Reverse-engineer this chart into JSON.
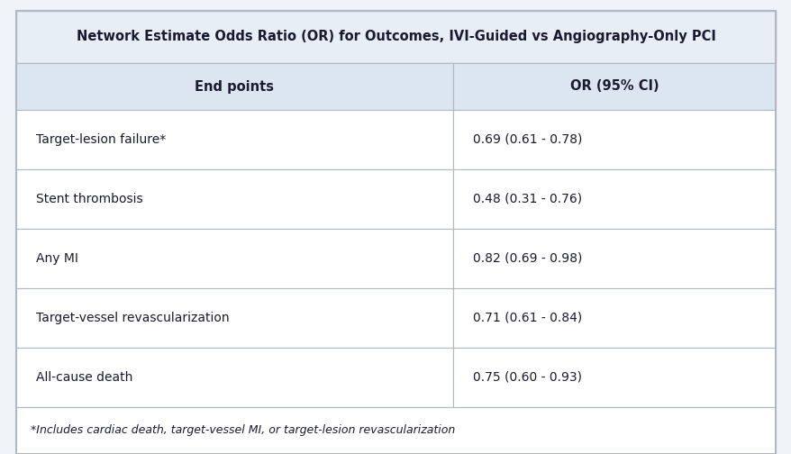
{
  "title": "Network Estimate Odds Ratio (OR) for Outcomes, IVI-Guided vs Angiography-Only PCI",
  "col1_header": "End points",
  "col2_header": "OR (95% CI)",
  "rows": [
    {
      "endpoint": "Target-lesion failure*",
      "or_ci": "0.69 (0.61 - 0.78)"
    },
    {
      "endpoint": "Stent thrombosis",
      "or_ci": "0.48 (0.31 - 0.76)"
    },
    {
      "endpoint": "Any MI",
      "or_ci": "0.82 (0.69 - 0.98)"
    },
    {
      "endpoint": "Target-vessel revascularization",
      "or_ci": "0.71 (0.61 - 0.84)"
    },
    {
      "endpoint": "All-cause death",
      "or_ci": "0.75 (0.60 - 0.93)"
    }
  ],
  "footnote": "*Includes cardiac death, target-vessel MI, or target-lesion revascularization",
  "title_bg": "#e8eef5",
  "header_bg": "#dce6f1",
  "row_bg": "#ffffff",
  "fig_bg": "#f0f4f8",
  "border_color": "#b0b8c4",
  "text_color": "#1a1a2e",
  "title_fontsize": 10.5,
  "header_fontsize": 10.5,
  "row_fontsize": 10,
  "footnote_fontsize": 9,
  "col_split": 0.575
}
